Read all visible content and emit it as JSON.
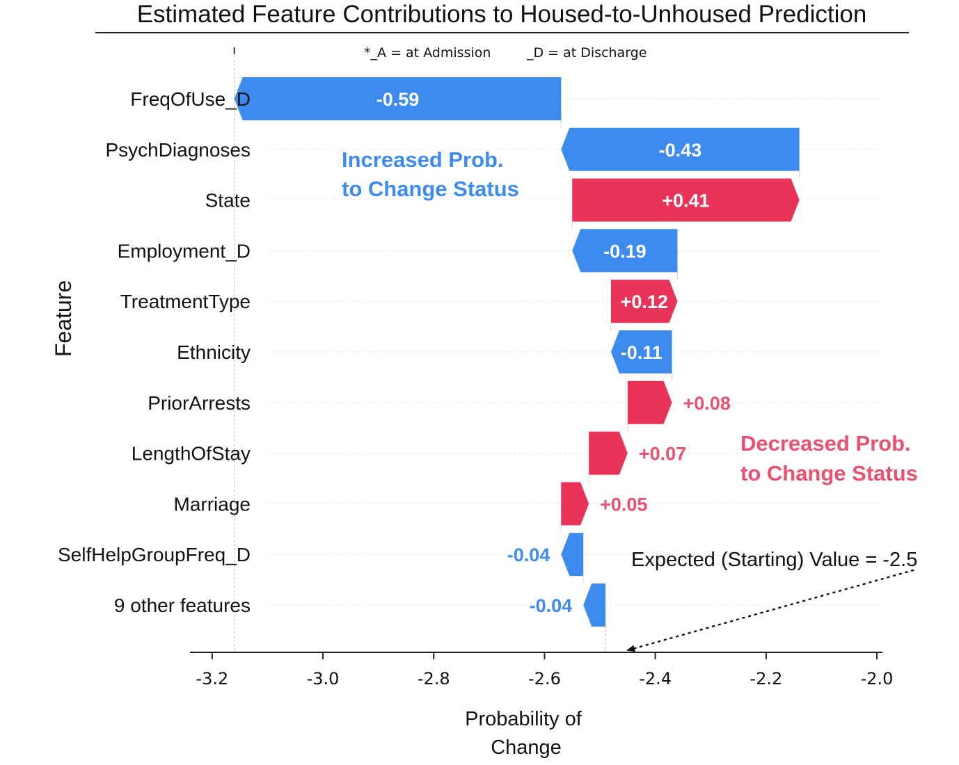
{
  "chart_data": {
    "type": "waterfall",
    "title": "Estimated Feature Contributions to Housed-to-Unhoused Prediction",
    "xlabel": "Probability of\nChange",
    "ylabel": "Feature",
    "xlim": [
      -3.24,
      -1.99
    ],
    "x_ticks": [
      "-3.2",
      "-3.0",
      "-2.8",
      "-2.6",
      "-2.4",
      "-2.2",
      "-2.0"
    ],
    "x_tick_values": [
      -3.2,
      -3.0,
      -2.8,
      -2.6,
      -2.4,
      -2.2,
      -2.0
    ],
    "base_value": -2.49,
    "final_value": -3.16,
    "grid": "horizontal dotted",
    "colors": {
      "increase": "#3d8bef",
      "decrease": "#ea3358",
      "increase_text": "#3d8bef",
      "decrease_text": "#e8526e"
    },
    "legend_note_1": "*_A = at Admission",
    "legend_note_2": "_D = at Discharge",
    "annotation_increase": "Increased Prob.\nto Change Status",
    "annotation_decrease": "Decreased Prob.\nto Change Status",
    "annotation_expected": "Expected (Starting) Value = -2.5",
    "features": [
      {
        "name": "FreqOfUse_D",
        "value": -0.59,
        "label": "-0.59"
      },
      {
        "name": "PsychDiagnoses",
        "value": -0.43,
        "label": "-0.43"
      },
      {
        "name": "State",
        "value": 0.41,
        "label": "+0.41"
      },
      {
        "name": "Employment_D",
        "value": -0.19,
        "label": "-0.19"
      },
      {
        "name": "TreatmentType",
        "value": 0.12,
        "label": "+0.12"
      },
      {
        "name": "Ethnicity",
        "value": -0.11,
        "label": "-0.11"
      },
      {
        "name": "PriorArrests",
        "value": 0.08,
        "label": "+0.08"
      },
      {
        "name": "LengthOfStay",
        "value": 0.07,
        "label": "+0.07"
      },
      {
        "name": "Marriage",
        "value": 0.05,
        "label": "+0.05"
      },
      {
        "name": "SelfHelpGroupFreq_D",
        "value": -0.04,
        "label": "-0.04"
      },
      {
        "name": "9 other features",
        "value": -0.04,
        "label": "-0.04"
      }
    ]
  }
}
